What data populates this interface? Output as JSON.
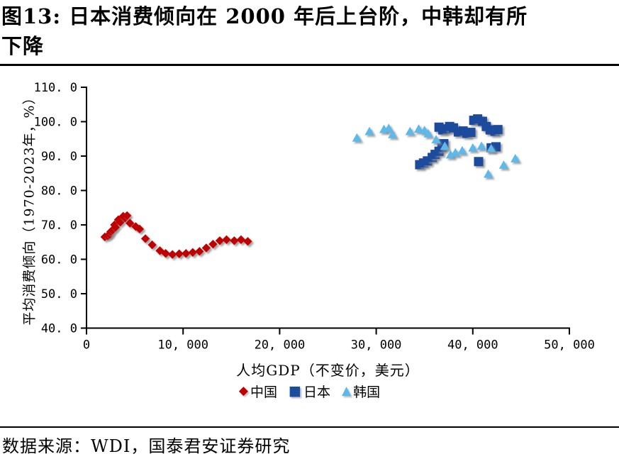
{
  "header": {
    "title_line1": "图13:  日本消费倾向在 2000 年后上台阶，中韩却有所",
    "title_line2": "下降"
  },
  "footer": {
    "source": "数据来源：WDI，国泰君安证券研究"
  },
  "chart_data": {
    "type": "scatter",
    "title": "",
    "xlabel": "人均GDP（不变价，美元）",
    "ylabel": "平均消费倾向（1970-2023年，%）",
    "xlim": [
      0,
      50000
    ],
    "ylim": [
      40,
      110
    ],
    "grid": false,
    "legend_position": "bottom",
    "x_ticks": [
      {
        "v": 0,
        "label": "0"
      },
      {
        "v": 10000,
        "label": "10, 000"
      },
      {
        "v": 20000,
        "label": "20, 000"
      },
      {
        "v": 30000,
        "label": "30, 000"
      },
      {
        "v": 40000,
        "label": "40, 000"
      },
      {
        "v": 50000,
        "label": "50, 000"
      }
    ],
    "y_ticks": [
      {
        "v": 40,
        "label": "40. 0"
      },
      {
        "v": 50,
        "label": "50. 0"
      },
      {
        "v": 60,
        "label": "60. 0"
      },
      {
        "v": 70,
        "label": "70. 0"
      },
      {
        "v": 80,
        "label": "80. 0"
      },
      {
        "v": 90,
        "label": "90. 0"
      },
      {
        "v": 100,
        "label": "100. 0"
      },
      {
        "v": 110,
        "label": "110. 0"
      }
    ],
    "series": [
      {
        "key": "china",
        "name": "中国",
        "marker": "diamond",
        "color": "#C00000",
        "points": [
          [
            1900,
            66.5
          ],
          [
            2200,
            66.8
          ],
          [
            2400,
            67.2
          ],
          [
            2500,
            68.0
          ],
          [
            2700,
            68.5
          ],
          [
            2900,
            70.0
          ],
          [
            3000,
            69.3
          ],
          [
            3300,
            71.5
          ],
          [
            3500,
            70.8
          ],
          [
            3800,
            72.5
          ],
          [
            4000,
            72.0
          ],
          [
            4200,
            72.7
          ],
          [
            4500,
            70.5
          ],
          [
            5100,
            69.5
          ],
          [
            5500,
            68.8
          ],
          [
            6100,
            66.0
          ],
          [
            6800,
            64.2
          ],
          [
            7600,
            62.5
          ],
          [
            8200,
            61.7
          ],
          [
            8900,
            61.4
          ],
          [
            9600,
            61.6
          ],
          [
            10300,
            61.7
          ],
          [
            11000,
            62.0
          ],
          [
            11700,
            62.3
          ],
          [
            12400,
            63.3
          ],
          [
            13100,
            64.4
          ],
          [
            13800,
            65.4
          ],
          [
            14500,
            65.7
          ],
          [
            15300,
            65.4
          ],
          [
            16000,
            65.7
          ],
          [
            16700,
            65.2
          ]
        ]
      },
      {
        "key": "japan",
        "name": "日本",
        "marker": "square",
        "color": "#1B4C9E",
        "points": [
          [
            34500,
            87.5
          ],
          [
            34900,
            88.0
          ],
          [
            35300,
            88.6
          ],
          [
            35800,
            89.6
          ],
          [
            36100,
            90.5
          ],
          [
            36500,
            91.4
          ],
          [
            36800,
            92.6
          ],
          [
            37000,
            93.6
          ],
          [
            36500,
            98.4
          ],
          [
            36900,
            97.6
          ],
          [
            37200,
            97.9
          ],
          [
            37600,
            98.6
          ],
          [
            38000,
            98.2
          ],
          [
            38500,
            97.0
          ],
          [
            39000,
            97.3
          ],
          [
            39400,
            96.6
          ],
          [
            39800,
            96.9
          ],
          [
            40100,
            100.4
          ],
          [
            40500,
            100.8
          ],
          [
            41000,
            100.1
          ],
          [
            41400,
            98.6
          ],
          [
            41800,
            97.6
          ],
          [
            42300,
            97.2
          ],
          [
            42600,
            97.7
          ],
          [
            40600,
            88.4
          ],
          [
            41900,
            92.4
          ],
          [
            42400,
            92.7
          ]
        ]
      },
      {
        "key": "korea",
        "name": "韩国",
        "marker": "triangle",
        "color": "#5BB9EA",
        "points": [
          [
            28000,
            95.3
          ],
          [
            29300,
            97.2
          ],
          [
            30800,
            97.8
          ],
          [
            31300,
            98.1
          ],
          [
            31700,
            96.3
          ],
          [
            33500,
            97.2
          ],
          [
            34400,
            97.9
          ],
          [
            35000,
            97.5
          ],
          [
            35400,
            96.5
          ],
          [
            36200,
            94.8
          ],
          [
            37100,
            92.9
          ],
          [
            37700,
            90.4
          ],
          [
            38200,
            91.0
          ],
          [
            38900,
            91.6
          ],
          [
            40000,
            92.4
          ],
          [
            40900,
            92.9
          ],
          [
            41900,
            92.2
          ],
          [
            41600,
            84.8
          ],
          [
            43200,
            87.4
          ],
          [
            44400,
            89.3
          ]
        ]
      }
    ]
  }
}
